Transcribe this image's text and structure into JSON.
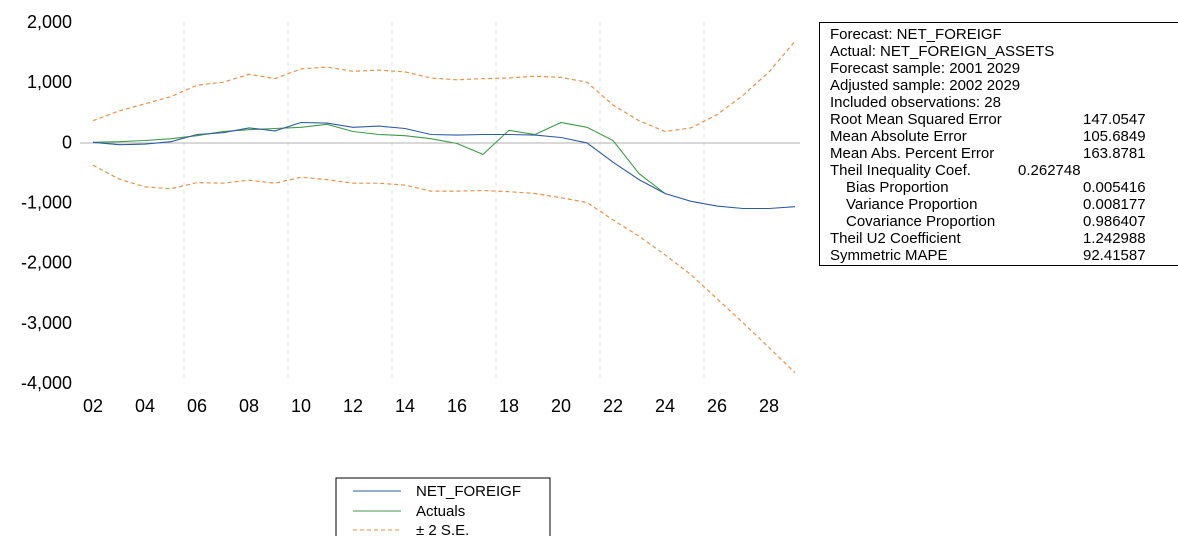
{
  "chart_data": {
    "type": "line",
    "x_tick_labels": [
      "02",
      "04",
      "06",
      "08",
      "10",
      "12",
      "14",
      "16",
      "18",
      "20",
      "22",
      "24",
      "26",
      "28"
    ],
    "y_tick_labels": [
      "2,000",
      "1,000",
      "0",
      "-1,000",
      "-2,000",
      "-3,000",
      "-4,000"
    ],
    "ylim": [
      -4000,
      2000
    ],
    "x": [
      2002,
      2003,
      2004,
      2005,
      2006,
      2007,
      2008,
      2009,
      2010,
      2011,
      2012,
      2013,
      2014,
      2015,
      2016,
      2017,
      2018,
      2019,
      2020,
      2021,
      2022,
      2023,
      2024,
      2025,
      2026,
      2027,
      2028,
      2029
    ],
    "series": [
      {
        "name": "NET_FOREIGF",
        "color": "#2f5c9e",
        "style": "solid",
        "values": [
          0,
          -40,
          -30,
          10,
          130,
          160,
          240,
          190,
          330,
          320,
          250,
          270,
          230,
          130,
          120,
          130,
          130,
          120,
          80,
          -10,
          -330,
          -620,
          -850,
          -980,
          -1060,
          -1100,
          -1100,
          -1070
        ]
      },
      {
        "name": "Actuals",
        "color": "#3f9a4b",
        "style": "solid",
        "values": [
          0,
          10,
          30,
          60,
          110,
          180,
          210,
          230,
          250,
          300,
          180,
          130,
          110,
          60,
          -20,
          -200,
          200,
          130,
          330,
          250,
          30,
          -520,
          -850,
          null,
          null,
          null,
          null,
          null
        ]
      },
      {
        "name": "± 2 S.E.",
        "color": "#e8914a",
        "style": "dashed",
        "band": "upper",
        "values": [
          360,
          520,
          640,
          760,
          950,
          1000,
          1130,
          1060,
          1220,
          1250,
          1180,
          1200,
          1170,
          1070,
          1040,
          1060,
          1070,
          1100,
          1080,
          1000,
          620,
          360,
          180,
          240,
          460,
          780,
          1170,
          1680
        ]
      },
      {
        "name": "",
        "color": "#e8914a",
        "style": "dashed",
        "band": "lower",
        "values": [
          -380,
          -610,
          -740,
          -770,
          -670,
          -680,
          -630,
          -680,
          -580,
          -620,
          -680,
          -680,
          -710,
          -810,
          -810,
          -800,
          -820,
          -850,
          -920,
          -1000,
          -1290,
          -1560,
          -1870,
          -2200,
          -2600,
          -3000,
          -3410,
          -3830
        ]
      }
    ],
    "grid": "vertical dotted",
    "legend_position": "bottom"
  },
  "stats": {
    "rows": [
      {
        "label": "Forecast: NET_FOREIGF",
        "value": ""
      },
      {
        "label": "Actual: NET_FOREIGN_ASSETS",
        "value": ""
      },
      {
        "label": "Forecast sample: 2001 2029",
        "value": ""
      },
      {
        "label": "Adjusted sample: 2002 2029",
        "value": ""
      },
      {
        "label": "Included observations: 28",
        "value": ""
      },
      {
        "label": "Root Mean Squared Error",
        "value": "147.0547"
      },
      {
        "label": "Mean Absolute Error",
        "value": "105.6849"
      },
      {
        "label": "Mean Abs. Percent Error",
        "value": "163.8781"
      },
      {
        "label": "Theil Inequality Coef.",
        "value": "0.262748"
      },
      {
        "label": "Bias Proportion",
        "value": "0.005416",
        "indent": true
      },
      {
        "label": "Variance Proportion",
        "value": "0.008177",
        "indent": true
      },
      {
        "label": "Covariance Proportion",
        "value": "0.986407",
        "indent": true
      },
      {
        "label": "Theil U2 Coefficient",
        "value": "1.242988"
      },
      {
        "label": "Symmetric MAPE",
        "value": "92.41587"
      }
    ]
  }
}
